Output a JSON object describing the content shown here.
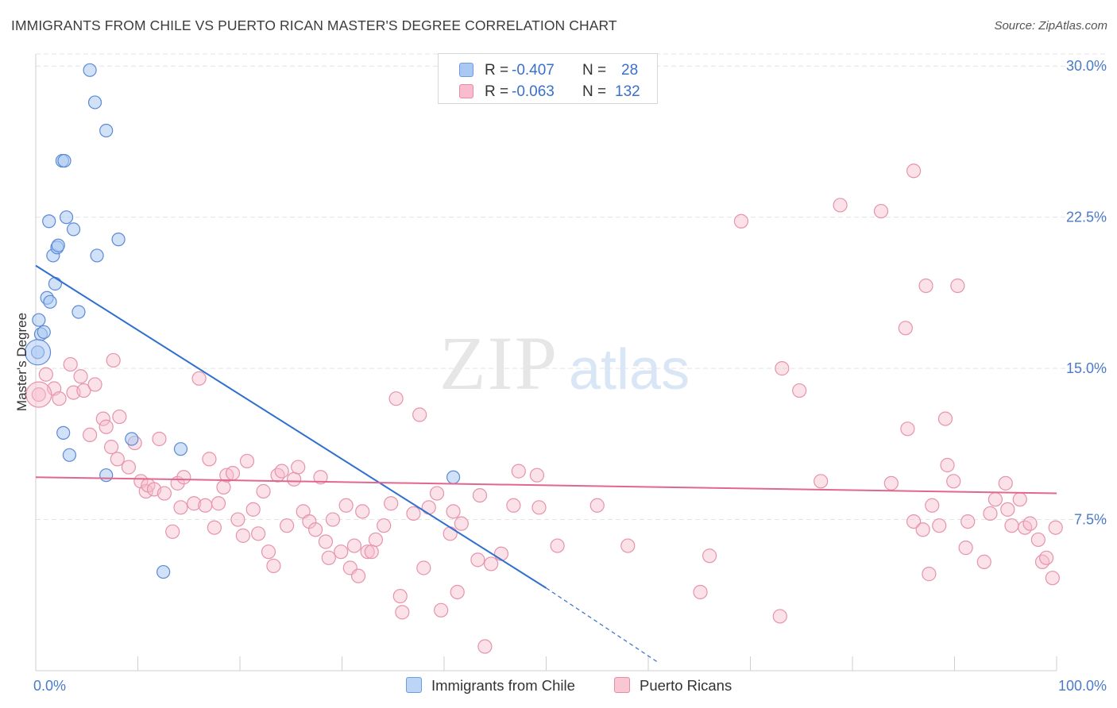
{
  "header": {
    "title": "IMMIGRANTS FROM CHILE VS PUERTO RICAN MASTER'S DEGREE CORRELATION CHART",
    "source": "Source: ZipAtlas.com"
  },
  "watermark": {
    "zip": "ZIP",
    "atlas": "atlas"
  },
  "legend": {
    "rows": [
      {
        "r_label": "R = ",
        "r_value": "-0.407",
        "n_label": "N = ",
        "n_value": "28",
        "color": "#a9c8f3",
        "border": "#6f9be0"
      },
      {
        "r_label": "R = ",
        "r_value": "-0.063",
        "n_label": "N = ",
        "n_value": "132",
        "color": "#f7bccd",
        "border": "#e98aa6"
      }
    ]
  },
  "bottom_legend": {
    "items": [
      {
        "label": "Immigrants from Chile",
        "color": "#bcd4f6",
        "border": "#6f9be0"
      },
      {
        "label": "Puerto Ricans",
        "color": "#f9c6d4",
        "border": "#e98aa6"
      }
    ]
  },
  "colors": {
    "chile_fill": "#a9c8f3",
    "chile_stroke": "#5b8ad6",
    "chile_line": "#2f6fcf",
    "pr_fill": "#f7bccd",
    "pr_stroke": "#e693ab",
    "pr_line": "#e3668f",
    "axis_text": "#4a7bc8",
    "grid": "#e4e4e4"
  },
  "chart_data": {
    "type": "scatter",
    "title": "IMMIGRANTS FROM CHILE VS PUERTO RICAN MASTER'S DEGREE CORRELATION CHART",
    "xlabel": "",
    "ylabel": "Master's Degree",
    "xlim": [
      0,
      100
    ],
    "ylim": [
      0,
      30.6
    ],
    "x_tick_labels": [
      "0.0%",
      "100.0%"
    ],
    "y_ticks": [
      7.5,
      15.0,
      22.5,
      30.0
    ],
    "y_tick_labels": [
      "7.5%",
      "15.0%",
      "22.5%",
      "30.0%"
    ],
    "grid": true,
    "legend_position": "top-center",
    "series": [
      {
        "name": "Immigrants from Chile",
        "r": -0.407,
        "n": 28,
        "trend": {
          "x": [
            0,
            50
          ],
          "y": [
            20.1,
            4.1
          ],
          "dashed_to": [
            61,
            0.4
          ]
        },
        "points": [
          [
            0.2,
            15.8
          ],
          [
            0.3,
            17.4
          ],
          [
            0.5,
            16.7
          ],
          [
            0.8,
            16.8
          ],
          [
            1.1,
            18.5
          ],
          [
            1.3,
            22.3
          ],
          [
            1.4,
            18.3
          ],
          [
            1.7,
            20.6
          ],
          [
            1.9,
            19.2
          ],
          [
            2.1,
            21.0
          ],
          [
            2.2,
            21.1
          ],
          [
            2.6,
            25.3
          ],
          [
            2.7,
            11.8
          ],
          [
            2.8,
            25.3
          ],
          [
            3.0,
            22.5
          ],
          [
            3.3,
            10.7
          ],
          [
            3.7,
            21.9
          ],
          [
            4.2,
            17.8
          ],
          [
            6.9,
            26.8
          ],
          [
            5.3,
            29.8
          ],
          [
            5.8,
            28.2
          ],
          [
            6.0,
            20.6
          ],
          [
            6.9,
            9.7
          ],
          [
            8.1,
            21.4
          ],
          [
            9.4,
            11.5
          ],
          [
            14.2,
            11.0
          ],
          [
            12.5,
            4.9
          ],
          [
            40.9,
            9.6
          ]
        ]
      },
      {
        "name": "Puerto Ricans",
        "r": -0.063,
        "n": 132,
        "trend": {
          "x": [
            0,
            100
          ],
          "y": [
            9.6,
            8.8
          ]
        },
        "points": [
          [
            0.3,
            13.7
          ],
          [
            1.0,
            14.7
          ],
          [
            1.8,
            14.0
          ],
          [
            2.3,
            13.5
          ],
          [
            3.4,
            15.2
          ],
          [
            3.7,
            13.8
          ],
          [
            4.4,
            14.6
          ],
          [
            4.7,
            13.9
          ],
          [
            5.3,
            11.7
          ],
          [
            5.8,
            14.2
          ],
          [
            6.6,
            12.5
          ],
          [
            6.9,
            12.1
          ],
          [
            7.4,
            11.1
          ],
          [
            8.0,
            10.5
          ],
          [
            8.2,
            12.6
          ],
          [
            7.6,
            15.4
          ],
          [
            9.1,
            10.1
          ],
          [
            9.7,
            11.3
          ],
          [
            10.3,
            9.4
          ],
          [
            10.8,
            8.9
          ],
          [
            11.0,
            9.2
          ],
          [
            11.6,
            9.0
          ],
          [
            12.1,
            11.5
          ],
          [
            12.6,
            8.8
          ],
          [
            13.4,
            6.9
          ],
          [
            13.9,
            9.3
          ],
          [
            14.2,
            8.1
          ],
          [
            14.5,
            9.6
          ],
          [
            15.5,
            8.3
          ],
          [
            16.0,
            14.5
          ],
          [
            16.6,
            8.2
          ],
          [
            17.0,
            10.5
          ],
          [
            17.5,
            7.1
          ],
          [
            17.9,
            8.3
          ],
          [
            18.4,
            9.1
          ],
          [
            18.7,
            9.7
          ],
          [
            19.3,
            9.8
          ],
          [
            19.8,
            7.5
          ],
          [
            20.3,
            6.7
          ],
          [
            20.7,
            10.4
          ],
          [
            21.3,
            8.0
          ],
          [
            21.8,
            6.8
          ],
          [
            22.3,
            8.9
          ],
          [
            22.8,
            5.9
          ],
          [
            23.3,
            5.2
          ],
          [
            23.7,
            9.7
          ],
          [
            24.1,
            9.9
          ],
          [
            24.6,
            7.2
          ],
          [
            25.3,
            9.5
          ],
          [
            25.7,
            10.1
          ],
          [
            26.2,
            7.9
          ],
          [
            26.8,
            7.4
          ],
          [
            27.4,
            7.0
          ],
          [
            27.9,
            9.6
          ],
          [
            28.4,
            6.4
          ],
          [
            28.7,
            5.6
          ],
          [
            29.1,
            7.5
          ],
          [
            29.9,
            5.9
          ],
          [
            30.4,
            8.2
          ],
          [
            30.8,
            5.1
          ],
          [
            31.2,
            6.2
          ],
          [
            31.6,
            4.7
          ],
          [
            32.0,
            7.9
          ],
          [
            32.5,
            5.9
          ],
          [
            32.9,
            5.9
          ],
          [
            33.3,
            6.5
          ],
          [
            34.1,
            7.2
          ],
          [
            34.8,
            8.3
          ],
          [
            35.3,
            13.5
          ],
          [
            35.7,
            3.7
          ],
          [
            35.9,
            2.9
          ],
          [
            37.0,
            7.8
          ],
          [
            37.6,
            12.7
          ],
          [
            38.0,
            5.1
          ],
          [
            38.5,
            8.1
          ],
          [
            39.3,
            8.8
          ],
          [
            39.7,
            3.0
          ],
          [
            40.6,
            6.8
          ],
          [
            40.9,
            7.9
          ],
          [
            41.3,
            3.9
          ],
          [
            41.7,
            7.3
          ],
          [
            43.3,
            5.5
          ],
          [
            43.5,
            8.7
          ],
          [
            44.0,
            1.2
          ],
          [
            44.6,
            5.3
          ],
          [
            45.6,
            5.8
          ],
          [
            46.8,
            8.2
          ],
          [
            47.3,
            9.9
          ],
          [
            49.1,
            9.7
          ],
          [
            49.3,
            8.1
          ],
          [
            51.1,
            6.2
          ],
          [
            55.0,
            8.2
          ],
          [
            58.0,
            6.2
          ],
          [
            65.1,
            3.9
          ],
          [
            66.0,
            5.7
          ],
          [
            69.1,
            22.3
          ],
          [
            73.1,
            15.0
          ],
          [
            72.9,
            2.7
          ],
          [
            74.8,
            13.9
          ],
          [
            76.9,
            9.4
          ],
          [
            78.8,
            23.1
          ],
          [
            82.8,
            22.8
          ],
          [
            83.8,
            9.3
          ],
          [
            86.0,
            24.8
          ],
          [
            85.2,
            17.0
          ],
          [
            85.4,
            12.0
          ],
          [
            86.0,
            7.4
          ],
          [
            87.2,
            19.1
          ],
          [
            87.5,
            4.8
          ],
          [
            87.8,
            8.2
          ],
          [
            88.5,
            7.2
          ],
          [
            89.1,
            12.5
          ],
          [
            89.3,
            10.2
          ],
          [
            89.9,
            9.4
          ],
          [
            90.3,
            19.1
          ],
          [
            91.1,
            6.1
          ],
          [
            91.3,
            7.4
          ],
          [
            92.9,
            5.4
          ],
          [
            93.5,
            7.8
          ],
          [
            94.0,
            8.5
          ],
          [
            95.0,
            9.3
          ],
          [
            95.2,
            8.0
          ],
          [
            95.6,
            7.2
          ],
          [
            96.4,
            8.5
          ],
          [
            96.9,
            7.1
          ],
          [
            97.4,
            7.3
          ],
          [
            98.2,
            6.5
          ],
          [
            98.6,
            5.4
          ],
          [
            99.0,
            5.6
          ],
          [
            99.6,
            4.6
          ],
          [
            99.9,
            7.1
          ],
          [
            86.9,
            7.0
          ]
        ]
      }
    ]
  }
}
